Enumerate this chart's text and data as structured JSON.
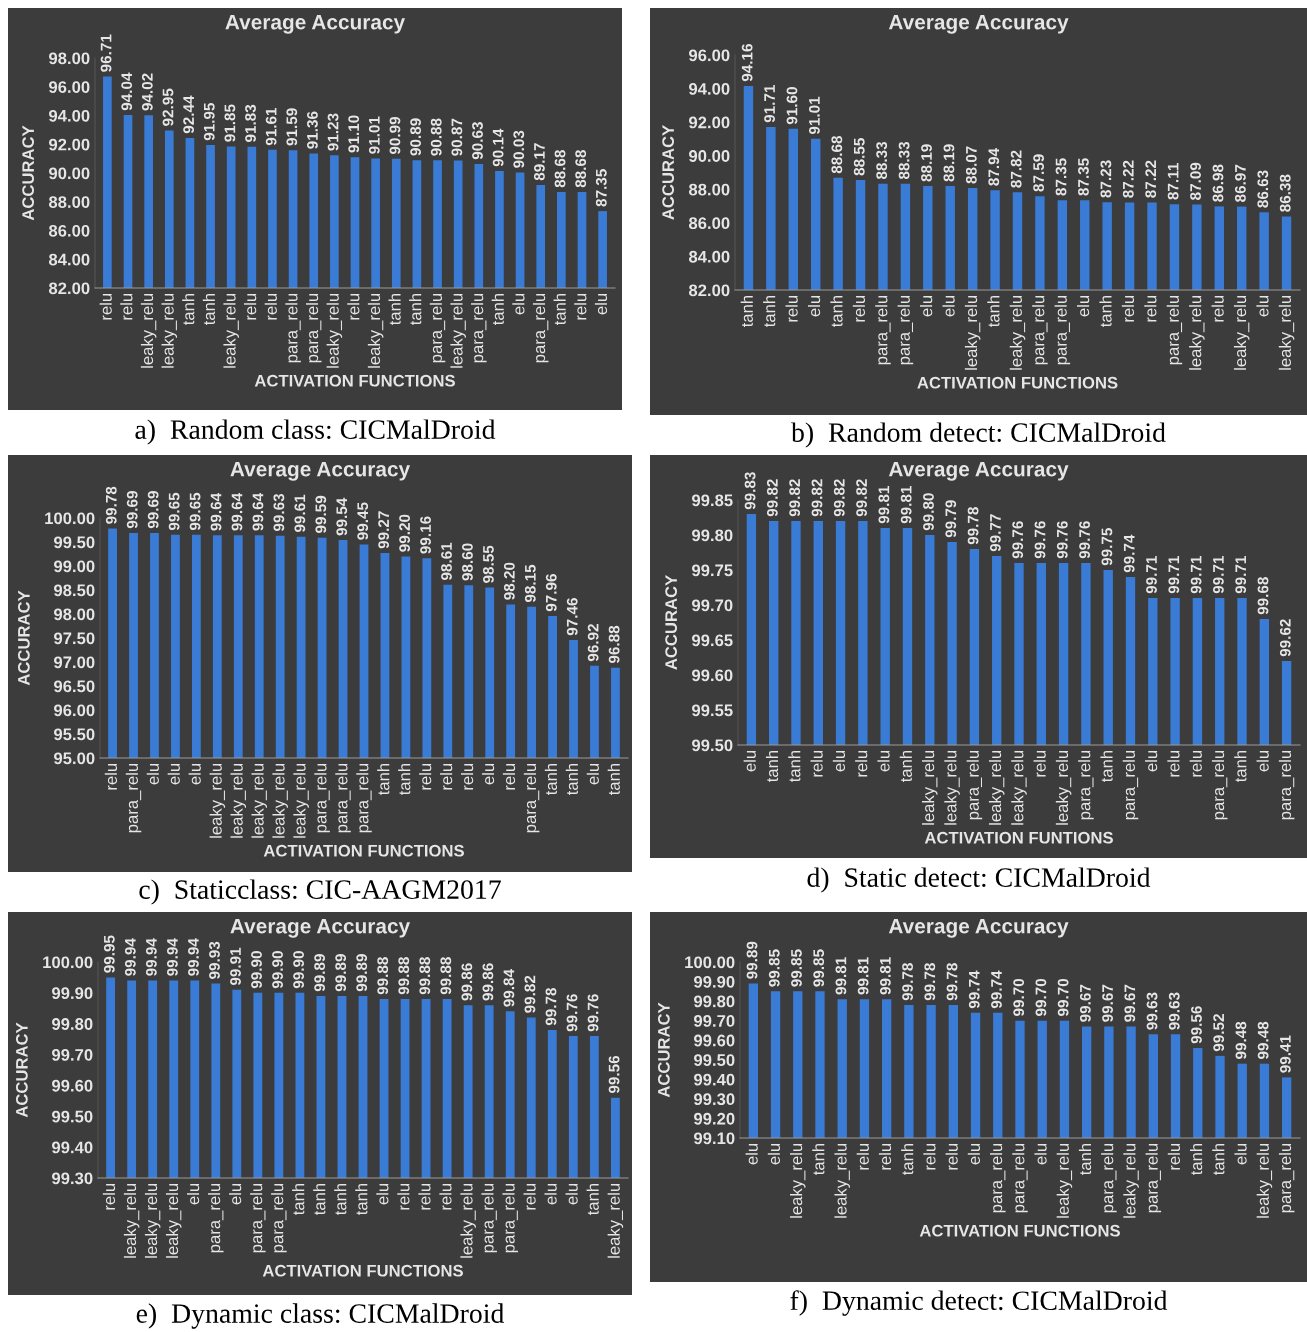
{
  "chart_data": [
    {
      "type": "bar",
      "title": "Average Accuracy",
      "xlabel": "ACTIVATION FUNCTIONS",
      "ylabel": "ACCURACY",
      "annotations": [
        "a)  Random class: CICMalDroid"
      ],
      "grid": false,
      "legend": false,
      "categories": [
        "relu",
        "relu",
        "leaky_relu",
        "leaky_relu",
        "tanh",
        "tanh",
        "leaky_relu",
        "relu",
        "relu",
        "para_relu",
        "para_relu",
        "leaky_relu",
        "relu",
        "leaky_relu",
        "tanh",
        "tanh",
        "para_relu",
        "leaky_relu",
        "para_relu",
        "tanh",
        "elu",
        "para_relu",
        "tanh",
        "relu",
        "elu"
      ],
      "values": [
        96.71,
        94.04,
        94.02,
        92.95,
        92.44,
        91.95,
        91.85,
        91.83,
        91.61,
        91.59,
        91.36,
        91.23,
        91.1,
        91.01,
        90.99,
        90.89,
        90.88,
        90.87,
        90.63,
        90.14,
        90.03,
        89.17,
        88.68,
        88.68,
        87.35
      ],
      "value_labels": [
        "96.71",
        "94.04",
        "94.02",
        "92.95",
        "92.44",
        "91.95",
        "91.85",
        "91.83",
        "91.61",
        "91.59",
        "91.36",
        "91.23",
        "91.10",
        "91.01",
        "90.99",
        "90.89",
        "90.88",
        "90.87",
        "90.63",
        "90.14",
        "90.03",
        "89.17",
        "88.68",
        "88.68",
        "87.35"
      ],
      "color": "#3a7bd5",
      "ylim": [
        82,
        98
      ],
      "yticks": [
        {
          "value": 82,
          "label": "82.00"
        },
        {
          "value": 84,
          "label": "84.00"
        },
        {
          "value": 86,
          "label": "86.00"
        },
        {
          "value": 88,
          "label": "88.00"
        },
        {
          "value": 90,
          "label": "90.00"
        },
        {
          "value": 92,
          "label": "92.00"
        },
        {
          "value": 94,
          "label": "94.00"
        },
        {
          "value": 96,
          "label": "96.00"
        },
        {
          "value": 98,
          "label": "98.00"
        }
      ]
    },
    {
      "type": "bar",
      "title": "Average Accuracy",
      "xlabel": "ACTIVATION FUNCTIONS",
      "ylabel": "ACCURACY",
      "annotations": [
        "b)  Random detect: CICMalDroid"
      ],
      "grid": false,
      "legend": false,
      "categories": [
        "tanh",
        "tanh",
        "relu",
        "elu",
        "tanh",
        "relu",
        "para_relu",
        "para_relu",
        "elu",
        "elu",
        "leaky_relu",
        "tanh",
        "leaky_relu",
        "para_relu",
        "para_relu",
        "elu",
        "tanh",
        "relu",
        "relu",
        "para_relu",
        "leaky_relu",
        "relu",
        "leaky_relu",
        "elu",
        "leaky_relu"
      ],
      "values": [
        94.16,
        91.71,
        91.6,
        91.01,
        88.68,
        88.55,
        88.33,
        88.33,
        88.19,
        88.19,
        88.07,
        87.94,
        87.82,
        87.59,
        87.35,
        87.35,
        87.23,
        87.22,
        87.22,
        87.11,
        87.09,
        86.98,
        86.97,
        86.63,
        86.38
      ],
      "value_labels": [
        "94.16",
        "91.71",
        "91.60",
        "91.01",
        "88.68",
        "88.55",
        "88.33",
        "88.33",
        "88.19",
        "88.19",
        "88.07",
        "87.94",
        "87.82",
        "87.59",
        "87.35",
        "87.35",
        "87.23",
        "87.22",
        "87.22",
        "87.11",
        "87.09",
        "86.98",
        "86.97",
        "86.63",
        "86.38"
      ],
      "color": "#3a7bd5",
      "ylim": [
        82,
        96
      ],
      "yticks": [
        {
          "value": 82,
          "label": "82.00"
        },
        {
          "value": 84,
          "label": "84.00"
        },
        {
          "value": 86,
          "label": "86.00"
        },
        {
          "value": 88,
          "label": "88.00"
        },
        {
          "value": 90,
          "label": "90.00"
        },
        {
          "value": 92,
          "label": "92.00"
        },
        {
          "value": 94,
          "label": "94.00"
        },
        {
          "value": 96,
          "label": "96.00"
        }
      ]
    },
    {
      "type": "bar",
      "title": "Average Accuracy",
      "xlabel": "ACTIVATION FUNCTIONS",
      "ylabel": "ACCURACY",
      "annotations": [
        "c)  Staticclass: CIC-AAGM2017"
      ],
      "grid": false,
      "legend": false,
      "categories": [
        "relu",
        "para_relu",
        "elu",
        "elu",
        "elu",
        "leaky_relu",
        "leaky_relu",
        "leaky_relu",
        "leaky_relu",
        "leaky_relu",
        "para_relu",
        "para_relu",
        "para_relu",
        "tanh",
        "tanh",
        "relu",
        "relu",
        "relu",
        "elu",
        "relu",
        "para_relu",
        "tanh",
        "tanh",
        "elu",
        "tanh"
      ],
      "values": [
        99.78,
        99.69,
        99.69,
        99.65,
        99.65,
        99.64,
        99.64,
        99.64,
        99.63,
        99.61,
        99.59,
        99.54,
        99.45,
        99.27,
        99.2,
        99.16,
        98.61,
        98.6,
        98.55,
        98.2,
        98.15,
        97.96,
        97.46,
        96.92,
        96.88
      ],
      "value_labels": [
        "99.78",
        "99.69",
        "99.69",
        "99.65",
        "99.65",
        "99.64",
        "99.64",
        "99.64",
        "99.63",
        "99.61",
        "99.59",
        "99.54",
        "99.45",
        "99.27",
        "99.20",
        "99.16",
        "98.61",
        "98.60",
        "98.55",
        "98.20",
        "98.15",
        "97.96",
        "97.46",
        "96.92",
        "96.88"
      ],
      "color": "#3a7bd5",
      "ylim": [
        95,
        100
      ],
      "yticks": [
        {
          "value": 95,
          "label": "95.00"
        },
        {
          "value": 95.5,
          "label": "95.50"
        },
        {
          "value": 96,
          "label": "96.00"
        },
        {
          "value": 96.5,
          "label": "96.50"
        },
        {
          "value": 97,
          "label": "97.00"
        },
        {
          "value": 97.5,
          "label": "97.50"
        },
        {
          "value": 98,
          "label": "98.00"
        },
        {
          "value": 98.5,
          "label": "98.50"
        },
        {
          "value": 99,
          "label": "99.00"
        },
        {
          "value": 99.5,
          "label": "99.50"
        },
        {
          "value": 100,
          "label": "100.00"
        }
      ]
    },
    {
      "type": "bar",
      "title": "Average Accuracy",
      "xlabel": "ACTIVATION FUNTIONS",
      "ylabel": "ACCURACY",
      "annotations": [
        "d)  Static detect: CICMalDroid"
      ],
      "grid": false,
      "legend": false,
      "categories": [
        "elu",
        "tanh",
        "tanh",
        "relu",
        "elu",
        "relu",
        "elu",
        "tanh",
        "leaky_relu",
        "leaky_relu",
        "para_relu",
        "leaky_relu",
        "leaky_relu",
        "relu",
        "leaky_relu",
        "para_relu",
        "tanh",
        "para_relu",
        "elu",
        "relu",
        "relu",
        "para_relu",
        "tanh",
        "elu",
        "para_relu"
      ],
      "values": [
        99.83,
        99.82,
        99.82,
        99.82,
        99.82,
        99.82,
        99.81,
        99.81,
        99.8,
        99.79,
        99.78,
        99.77,
        99.76,
        99.76,
        99.76,
        99.76,
        99.75,
        99.74,
        99.71,
        99.71,
        99.71,
        99.71,
        99.71,
        99.68,
        99.62
      ],
      "value_labels": [
        "99.83",
        "99.82",
        "99.82",
        "99.82",
        "99.82",
        "99.82",
        "99.81",
        "99.81",
        "99.80",
        "99.79",
        "99.78",
        "99.77",
        "99.76",
        "99.76",
        "99.76",
        "99.76",
        "99.75",
        "99.74",
        "99.71",
        "99.71",
        "99.71",
        "99.71",
        "99.71",
        "99.68",
        "99.62"
      ],
      "color": "#3a7bd5",
      "ylim": [
        99.5,
        99.85
      ],
      "yticks": [
        {
          "value": 99.5,
          "label": "99.50"
        },
        {
          "value": 99.55,
          "label": "99.55"
        },
        {
          "value": 99.6,
          "label": "99.60"
        },
        {
          "value": 99.65,
          "label": "99.65"
        },
        {
          "value": 99.7,
          "label": "99.70"
        },
        {
          "value": 99.75,
          "label": "99.75"
        },
        {
          "value": 99.8,
          "label": "99.80"
        },
        {
          "value": 99.85,
          "label": "99.85"
        }
      ]
    },
    {
      "type": "bar",
      "title": "Average Accuracy",
      "xlabel": "ACTIVATION FUNCTIONS",
      "ylabel": "ACCURACY",
      "annotations": [
        "e)  Dynamic class: CICMalDroid"
      ],
      "grid": false,
      "legend": false,
      "categories": [
        "relu",
        "leaky_relu",
        "leaky_relu",
        "leaky_relu",
        "elu",
        "para_relu",
        "elu",
        "para_relu",
        "para_relu",
        "tanh",
        "tanh",
        "tanh",
        "tanh",
        "elu",
        "relu",
        "relu",
        "relu",
        "leaky_relu",
        "para_relu",
        "para_relu",
        "relu",
        "elu",
        "elu",
        "tanh",
        "leaky_relu"
      ],
      "values": [
        99.95,
        99.94,
        99.94,
        99.94,
        99.94,
        99.93,
        99.91,
        99.9,
        99.9,
        99.9,
        99.89,
        99.89,
        99.89,
        99.88,
        99.88,
        99.88,
        99.88,
        99.86,
        99.86,
        99.84,
        99.82,
        99.78,
        99.76,
        99.76,
        99.56
      ],
      "value_labels": [
        "99.95",
        "99.94",
        "99.94",
        "99.94",
        "99.94",
        "99.93",
        "99.91",
        "99.90",
        "99.90",
        "99.90",
        "99.89",
        "99.89",
        "99.89",
        "99.88",
        "99.88",
        "99.88",
        "99.88",
        "99.86",
        "99.86",
        "99.84",
        "99.82",
        "99.78",
        "99.76",
        "99.76",
        "99.56"
      ],
      "color": "#3a7bd5",
      "ylim": [
        99.3,
        100
      ],
      "yticks": [
        {
          "value": 99.3,
          "label": "99.30"
        },
        {
          "value": 99.4,
          "label": "99.40"
        },
        {
          "value": 99.5,
          "label": "99.50"
        },
        {
          "value": 99.6,
          "label": "99.60"
        },
        {
          "value": 99.7,
          "label": "99.70"
        },
        {
          "value": 99.8,
          "label": "99.80"
        },
        {
          "value": 99.9,
          "label": "99.90"
        },
        {
          "value": 100,
          "label": "100.00"
        }
      ]
    },
    {
      "type": "bar",
      "title": "Average Accuracy",
      "xlabel": "ACTIVATION FUNCTIONS",
      "ylabel": "ACCURACY",
      "annotations": [
        "f)  Dynamic detect: CICMalDroid"
      ],
      "grid": false,
      "legend": false,
      "categories": [
        "elu",
        "elu",
        "leaky_relu",
        "tanh",
        "leaky_relu",
        "relu",
        "relu",
        "tanh",
        "relu",
        "relu",
        "elu",
        "para_relu",
        "para_relu",
        "elu",
        "leaky_relu",
        "tanh",
        "para_relu",
        "leaky_relu",
        "para_relu",
        "relu",
        "tanh",
        "tanh",
        "elu",
        "leaky_relu",
        "para_relu"
      ],
      "values": [
        99.89,
        99.85,
        99.85,
        99.85,
        99.81,
        99.81,
        99.81,
        99.78,
        99.78,
        99.78,
        99.74,
        99.74,
        99.7,
        99.7,
        99.7,
        99.67,
        99.67,
        99.67,
        99.63,
        99.63,
        99.56,
        99.52,
        99.48,
        99.48,
        99.41
      ],
      "value_labels": [
        "99.89",
        "99.85",
        "99.85",
        "99.85",
        "99.81",
        "99.81",
        "99.81",
        "99.78",
        "99.78",
        "99.78",
        "99.74",
        "99.74",
        "99.70",
        "99.70",
        "99.70",
        "99.67",
        "99.67",
        "99.67",
        "99.63",
        "99.63",
        "99.56",
        "99.52",
        "99.48",
        "99.48",
        "99.41"
      ],
      "color": "#3a7bd5",
      "ylim": [
        99.1,
        100
      ],
      "yticks": [
        {
          "value": 99.1,
          "label": "99.10"
        },
        {
          "value": 99.2,
          "label": "99.20"
        },
        {
          "value": 99.3,
          "label": "99.30"
        },
        {
          "value": 99.4,
          "label": "99.40"
        },
        {
          "value": 99.5,
          "label": "99.50"
        },
        {
          "value": 99.6,
          "label": "99.60"
        },
        {
          "value": 99.7,
          "label": "99.70"
        },
        {
          "value": 99.8,
          "label": "99.80"
        },
        {
          "value": 99.9,
          "label": "99.90"
        },
        {
          "value": 100,
          "label": "100.00"
        }
      ]
    }
  ]
}
